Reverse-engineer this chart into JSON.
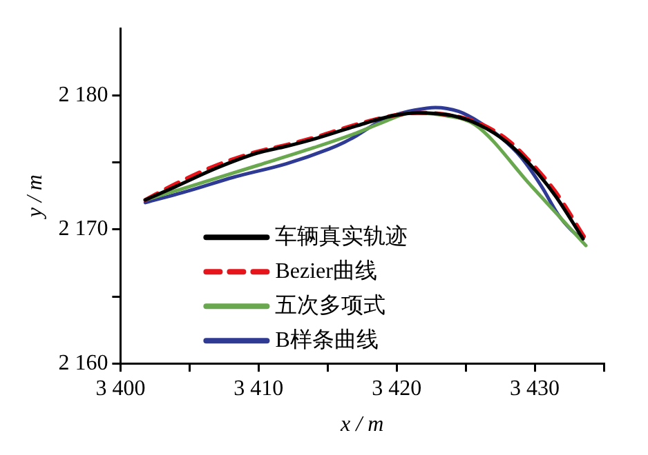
{
  "chart_data": {
    "type": "line",
    "xlabel": "x / m",
    "ylabel": "y / m",
    "xlim": [
      3400,
      3435
    ],
    "ylim": [
      2160,
      2185
    ],
    "xticks": [
      {
        "value": 3400,
        "label": "3 400"
      },
      {
        "value": 3405,
        "label": null
      },
      {
        "value": 3410,
        "label": "3 410"
      },
      {
        "value": 3415,
        "label": null
      },
      {
        "value": 3420,
        "label": "3 420"
      },
      {
        "value": 3425,
        "label": null
      },
      {
        "value": 3430,
        "label": "3 430"
      },
      {
        "value": 3435,
        "label": null
      }
    ],
    "yticks": [
      {
        "value": 2160,
        "label": "2 160"
      },
      {
        "value": 2165,
        "label": null
      },
      {
        "value": 2170,
        "label": "2 170"
      },
      {
        "value": 2175,
        "label": null
      },
      {
        "value": 2180,
        "label": "2 180"
      }
    ],
    "grid": false,
    "legend": "bottom left",
    "marker": "none",
    "series": [
      {
        "name": "车辆真实轨迹",
        "color": "#000000",
        "line_style": "solid",
        "x": [
          3401.8,
          3404,
          3407,
          3409.9,
          3412,
          3414.2,
          3417,
          3419.8,
          3421.5,
          3424,
          3426,
          3428,
          3429.7,
          3431.5,
          3433.5
        ],
        "values": [
          2172.2,
          2173.2,
          2174.6,
          2175.7,
          2176.2,
          2176.8,
          2177.7,
          2178.5,
          2178.7,
          2178.5,
          2177.8,
          2176.5,
          2174.8,
          2172.5,
          2169.3
        ]
      },
      {
        "name": "Bezier曲线",
        "color": "#e8141b",
        "line_style": "dashed",
        "x": [
          3401.8,
          3404,
          3407,
          3409.9,
          3412,
          3414.2,
          3417,
          3419.8,
          3421.5,
          3424,
          3426,
          3428,
          3429.7,
          3431.5,
          3433.6
        ],
        "values": [
          2172.2,
          2173.4,
          2174.8,
          2175.8,
          2176.3,
          2176.9,
          2177.8,
          2178.5,
          2178.7,
          2178.5,
          2177.9,
          2176.7,
          2175.0,
          2172.8,
          2169.4
        ]
      },
      {
        "name": "五次多项式",
        "color": "#6aa84f",
        "line_style": "solid",
        "x": [
          3401.8,
          3405,
          3410,
          3414,
          3417.1,
          3419,
          3421.1,
          3423.5,
          3425.7,
          3429.7,
          3433.7
        ],
        "values": [
          2172.2,
          2173.2,
          2174.8,
          2176.1,
          2177.2,
          2178.0,
          2178.7,
          2178.5,
          2177.8,
          2173.3,
          2168.8
        ]
      },
      {
        "name": "B样条曲线",
        "color": "#2e3a94",
        "line_style": "solid",
        "x": [
          3401.8,
          3405,
          3408.2,
          3412,
          3415.1,
          3416.2,
          3417.1,
          3418.5,
          3419.8,
          3421.3,
          3422.8,
          3424.5,
          3426,
          3427.5,
          3429,
          3430.5,
          3431.7,
          3432.6,
          3433.4
        ],
        "values": [
          2172.0,
          2172.9,
          2173.9,
          2174.9,
          2176.0,
          2176.5,
          2177.0,
          2177.9,
          2178.5,
          2178.9,
          2179.1,
          2178.8,
          2178.0,
          2176.9,
          2175.4,
          2173.2,
          2171.1,
          2170.0,
          2169.3
        ]
      }
    ]
  }
}
